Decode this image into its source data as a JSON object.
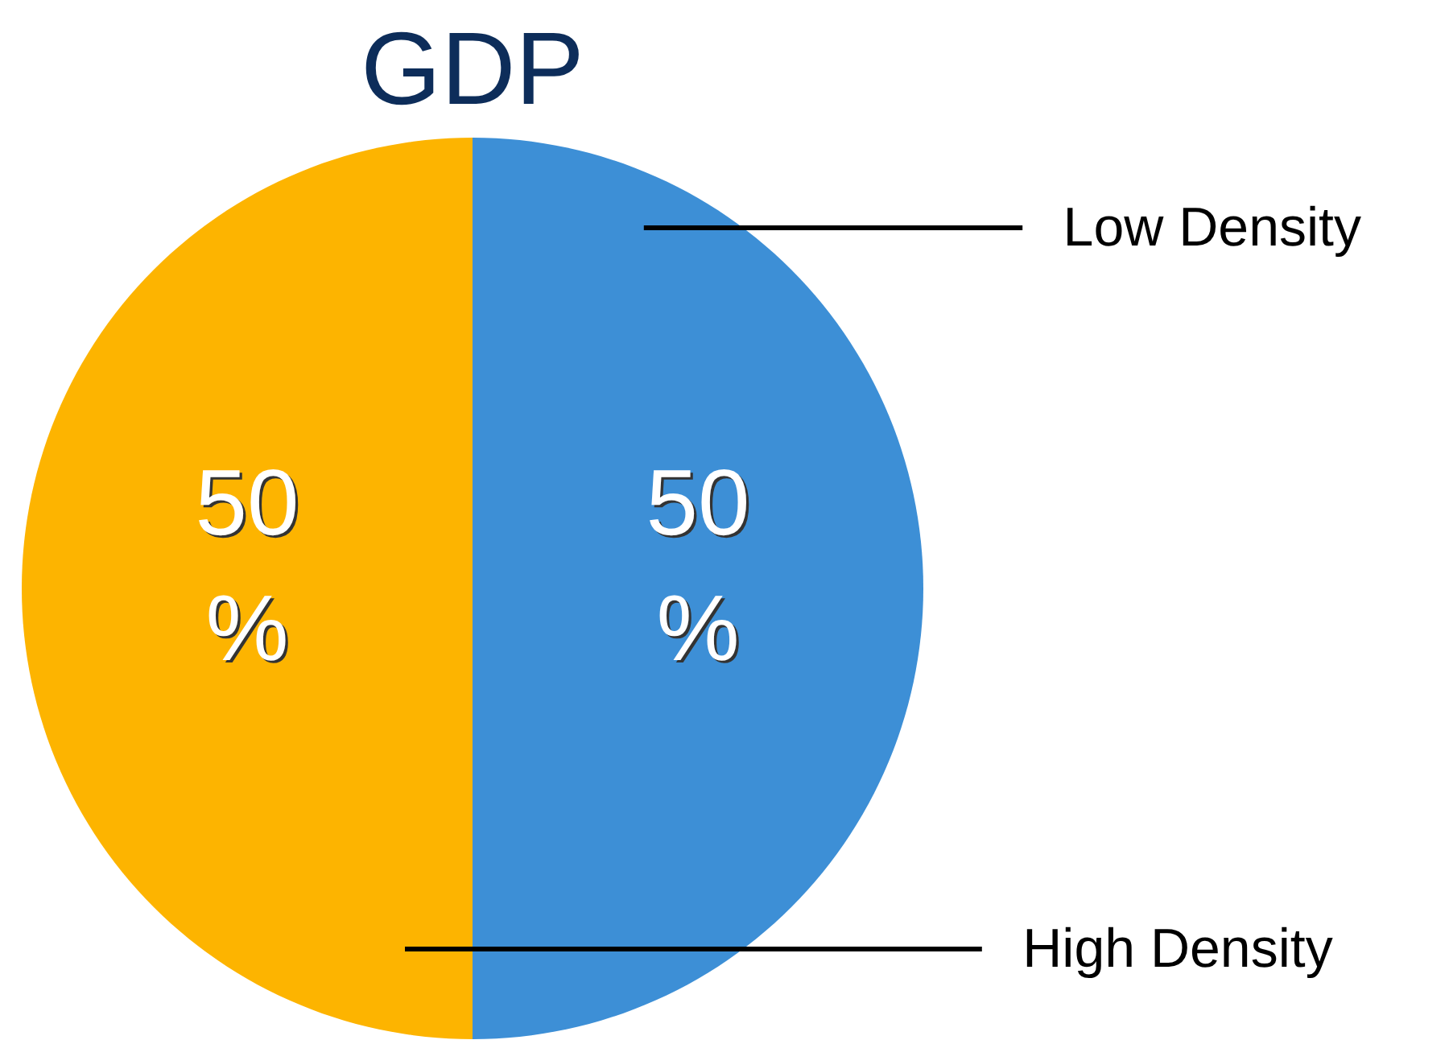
{
  "chart_data": {
    "type": "pie",
    "title": "GDP",
    "categories": [
      "Low Density",
      "High Density"
    ],
    "values": [
      50,
      50
    ],
    "colors": [
      "#3d8fd6",
      "#fdb400"
    ],
    "value_labels": [
      "50%",
      "50%"
    ]
  }
}
